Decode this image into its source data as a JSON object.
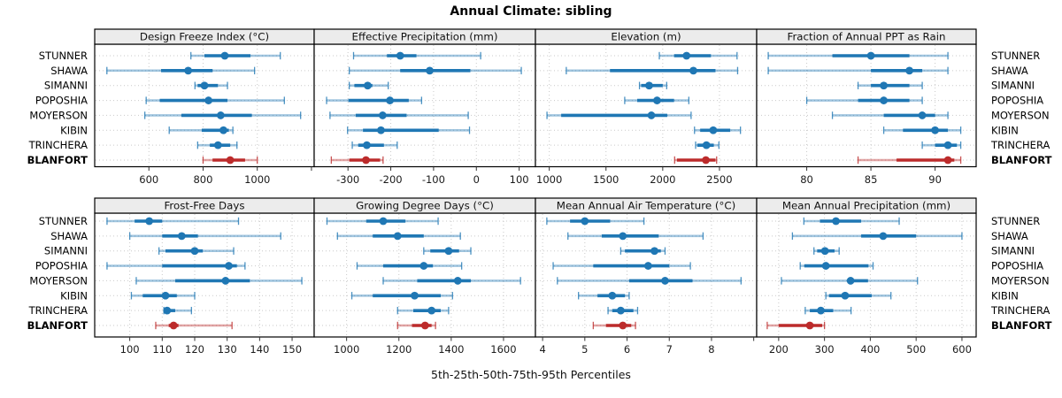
{
  "title": "Annual Climate: sibling",
  "caption": "5th-25th-50th-75th-95th Percentiles",
  "colors": {
    "blue": "#1f77b4",
    "red": "#bc2b2b",
    "strip_bg": "#ececec",
    "grid": "#c9c9c9",
    "panel_border": "#000000",
    "text": "#111111"
  },
  "chart_data": {
    "type": "scatter",
    "variant": "five-number-percentile-dot-whisker",
    "percentile_labels": [
      "5th",
      "25th",
      "50th",
      "75th",
      "95th"
    ],
    "sites": [
      "STUNNER",
      "SHAWA",
      "SIMANNI",
      "POPOSHIA",
      "MOYERSON",
      "KIBIN",
      "TRINCHERA",
      "BLANFORT"
    ],
    "highlight_site": "BLANFORT",
    "layout_grid": {
      "rows": 2,
      "cols": 4
    },
    "legend_position": "none",
    "grid_on": true,
    "panels": [
      {
        "title": "Design Freeze Index (°C)",
        "xlim": [
          400,
          1210
        ],
        "ticks": [
          600,
          800,
          1000
        ],
        "unlabeled_ticks": [
          1200
        ],
        "values": [
          [
            755,
            805,
            880,
            975,
            1085
          ],
          [
            445,
            645,
            745,
            835,
            990
          ],
          [
            770,
            780,
            805,
            855,
            890
          ],
          [
            590,
            640,
            820,
            890,
            1100
          ],
          [
            585,
            720,
            865,
            980,
            1160
          ],
          [
            675,
            795,
            875,
            895,
            910
          ],
          [
            780,
            825,
            855,
            900,
            925
          ],
          [
            800,
            835,
            900,
            955,
            1000
          ]
        ]
      },
      {
        "title": "Effective Precipitation (mm)",
        "xlim": [
          -379,
          138
        ],
        "ticks": [
          -300,
          -200,
          -100,
          0,
          100
        ],
        "unlabeled_ticks": [],
        "values": [
          [
            -287,
            -209,
            -178,
            -140,
            10
          ],
          [
            -297,
            -178,
            -109,
            -14,
            105
          ],
          [
            -297,
            -285,
            -254,
            -243,
            -206
          ],
          [
            -350,
            -299,
            -202,
            -158,
            -128
          ],
          [
            -342,
            -282,
            -219,
            -163,
            -19
          ],
          [
            -301,
            -265,
            -223,
            -88,
            -16
          ],
          [
            -290,
            -276,
            -256,
            -216,
            -185
          ],
          [
            -339,
            -297,
            -258,
            -225,
            -218
          ]
        ]
      },
      {
        "title": "Elevation (m)",
        "xlim": [
          878,
          2828
        ],
        "ticks": [
          1000,
          1500,
          2000,
          2500
        ],
        "unlabeled_ticks": [],
        "values": [
          [
            1970,
            2100,
            2210,
            2425,
            2655
          ],
          [
            1150,
            1535,
            2270,
            2465,
            2660
          ],
          [
            1795,
            1810,
            1880,
            2000,
            2035
          ],
          [
            1665,
            1775,
            1950,
            2100,
            2230
          ],
          [
            980,
            1105,
            1900,
            2040,
            2250
          ],
          [
            2280,
            2330,
            2445,
            2595,
            2685
          ],
          [
            2290,
            2305,
            2385,
            2450,
            2495
          ],
          [
            2105,
            2125,
            2380,
            2465,
            2475
          ]
        ]
      },
      {
        "title": "Fraction of Annual PPT as Rain",
        "xlim": [
          76.1,
          93.2
        ],
        "ticks": [
          80,
          85,
          90
        ],
        "unlabeled_ticks": [],
        "values": [
          [
            77,
            82,
            85,
            88,
            91
          ],
          [
            77,
            85,
            88,
            89,
            91
          ],
          [
            84,
            85,
            86,
            88,
            89
          ],
          [
            80,
            84,
            86,
            88,
            89
          ],
          [
            82,
            86,
            89,
            90,
            91
          ],
          [
            86,
            87.5,
            90,
            91,
            92
          ],
          [
            89,
            90,
            91,
            91.7,
            92
          ],
          [
            84,
            87,
            91,
            91.5,
            92
          ]
        ]
      },
      {
        "title": "Frost-Free Days",
        "xlim": [
          89.2,
          156.8
        ],
        "ticks": [
          100,
          110,
          120,
          130,
          140,
          150
        ],
        "unlabeled_ticks": [],
        "values": [
          [
            93,
            101.5,
            106,
            110,
            133.5
          ],
          [
            100,
            110,
            116,
            121,
            146.5
          ],
          [
            109,
            111,
            120,
            122.5,
            132
          ],
          [
            93,
            110,
            130.5,
            133,
            135.5
          ],
          [
            102,
            114,
            129.5,
            137,
            153
          ],
          [
            100.5,
            104,
            111,
            114.5,
            120
          ],
          [
            110.5,
            111,
            111.5,
            114,
            119
          ],
          [
            108,
            112,
            113.5,
            115,
            131.5
          ]
        ]
      },
      {
        "title": "Growing Degree Days (°C)",
        "xlim": [
          876,
          1722
        ],
        "ticks": [
          1000,
          1200,
          1400,
          1600
        ],
        "unlabeled_ticks": [],
        "values": [
          [
            925,
            1075,
            1140,
            1225,
            1350
          ],
          [
            965,
            1100,
            1195,
            1295,
            1435
          ],
          [
            1295,
            1320,
            1390,
            1430,
            1475
          ],
          [
            1040,
            1140,
            1295,
            1330,
            1440
          ],
          [
            1140,
            1270,
            1425,
            1475,
            1665
          ],
          [
            1020,
            1100,
            1260,
            1360,
            1405
          ],
          [
            1195,
            1255,
            1325,
            1360,
            1390
          ],
          [
            1195,
            1250,
            1300,
            1325,
            1340
          ]
        ]
      },
      {
        "title": "Mean Annual Air Temperature (°C)",
        "xlim": [
          3.83,
          9.07
        ],
        "ticks": [
          4,
          5,
          6,
          7,
          8
        ],
        "unlabeled_ticks": [
          9
        ],
        "values": [
          [
            4.1,
            4.65,
            5.0,
            5.6,
            6.4
          ],
          [
            4.6,
            5.4,
            5.9,
            6.75,
            7.8
          ],
          [
            5.85,
            5.95,
            6.65,
            6.8,
            6.9
          ],
          [
            4.25,
            5.2,
            6.5,
            7.0,
            7.5
          ],
          [
            4.35,
            6.05,
            6.9,
            7.55,
            8.7
          ],
          [
            4.85,
            5.3,
            5.65,
            5.95,
            6.05
          ],
          [
            5.55,
            5.65,
            5.85,
            6.15,
            6.25
          ],
          [
            5.2,
            5.5,
            5.9,
            6.1,
            6.2
          ]
        ]
      },
      {
        "title": "Mean Annual Precipitation (mm)",
        "xlim": [
          152,
          631
        ],
        "ticks": [
          200,
          300,
          400,
          500,
          600
        ],
        "unlabeled_ticks": [],
        "values": [
          [
            255,
            290,
            325,
            380,
            463
          ],
          [
            230,
            380,
            428,
            500,
            600
          ],
          [
            277,
            284,
            301,
            322,
            332
          ],
          [
            247,
            256,
            303,
            396,
            406
          ],
          [
            206,
            352,
            357,
            395,
            503
          ],
          [
            303,
            310,
            345,
            403,
            445
          ],
          [
            258,
            268,
            292,
            319,
            358
          ],
          [
            175,
            200,
            268,
            295,
            300
          ]
        ]
      }
    ]
  }
}
